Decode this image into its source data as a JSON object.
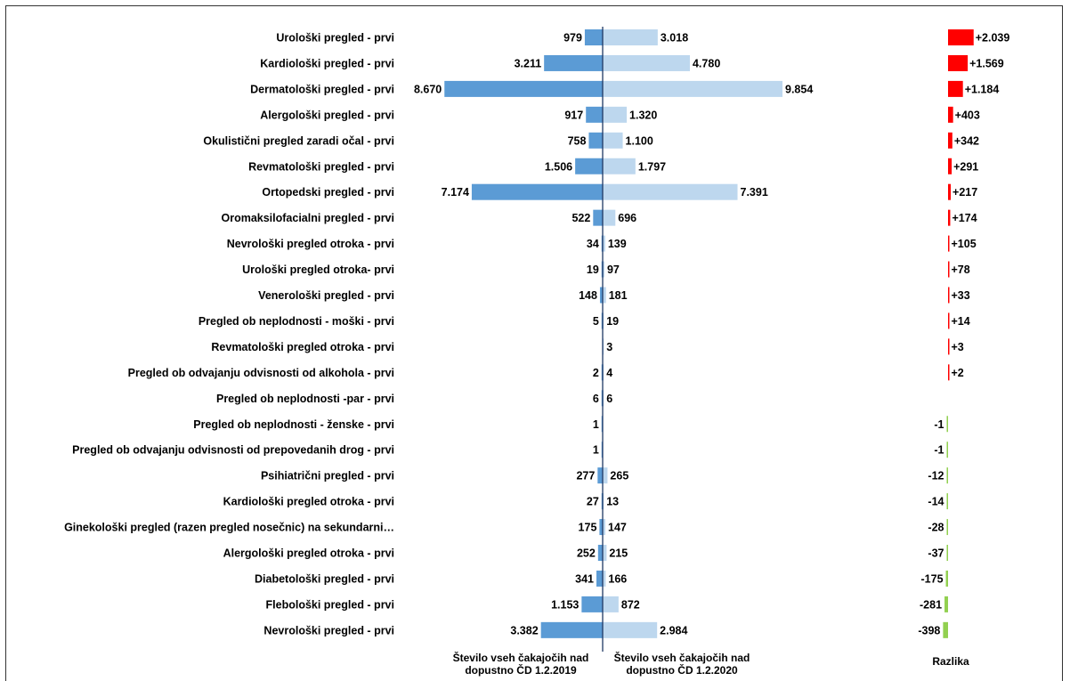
{
  "chart_data": {
    "type": "bar",
    "orientation": "horizontal-butterfly",
    "categories": [
      "Urološki pregled - prvi",
      "Kardiološki pregled - prvi",
      "Dermatološki pregled - prvi",
      "Alergološki pregled - prvi",
      "Okulistični pregled zaradi očal - prvi",
      "Revmatološki pregled - prvi",
      "Ortopedski pregled - prvi",
      "Oromaksilofacialni pregled - prvi",
      "Nevrološki pregled otroka - prvi",
      "Urološki pregled otroka- prvi",
      "Venerološki pregled - prvi",
      "Pregled ob neplodnosti - moški - prvi",
      "Revmatološki pregled otroka - prvi",
      "Pregled ob odvajanju odvisnosti od alkohola - prvi",
      "Pregled ob neplodnosti -par - prvi",
      "Pregled ob neplodnosti - ženske - prvi",
      "Pregled ob odvajanju odvisnosti od prepovedanih drog - prvi",
      "Psihiatrični pregled - prvi",
      "Kardiološki pregled otroka - prvi",
      "Ginekološki pregled (razen pregled nosečnic) na sekundarni…",
      "Alergološki pregled otroka - prvi",
      "Diabetološki pregled - prvi",
      "Flebološki pregled - prvi",
      "Nevrološki pregled - prvi"
    ],
    "series": [
      {
        "name": "Število vseh čakajočih nad dopustno ČD 1.2.2019",
        "values": [
          979,
          3211,
          8670,
          917,
          758,
          1506,
          7174,
          522,
          34,
          19,
          148,
          5,
          null,
          2,
          6,
          1,
          1,
          277,
          27,
          175,
          252,
          341,
          1153,
          3382
        ],
        "labels": [
          "979",
          "3.211",
          "8.670",
          "917",
          "758",
          "1.506",
          "7.174",
          "522",
          "34",
          "19",
          "148",
          "5",
          "",
          "2",
          "6",
          "1",
          "1",
          "277",
          "27",
          "175",
          "252",
          "341",
          "1.153",
          "3.382"
        ],
        "color": "#5b9bd5"
      },
      {
        "name": "Število vseh čakajočih nad dopustno ČD 1.2.2020",
        "values": [
          3018,
          4780,
          9854,
          1320,
          1100,
          1797,
          7391,
          696,
          139,
          97,
          181,
          19,
          3,
          4,
          6,
          null,
          null,
          265,
          13,
          147,
          215,
          166,
          872,
          2984
        ],
        "labels": [
          "3.018",
          "4.780",
          "9.854",
          "1.320",
          "1.100",
          "1.797",
          "7.391",
          "696",
          "139",
          "97",
          "181",
          "19",
          "3",
          "4",
          "6",
          "",
          "",
          "265",
          "13",
          "147",
          "215",
          "166",
          "872",
          "2.984"
        ],
        "color": "#bdd7ee"
      },
      {
        "name": "Razlika",
        "values": [
          2039,
          1569,
          1184,
          403,
          342,
          291,
          217,
          174,
          105,
          78,
          33,
          14,
          3,
          2,
          0,
          -1,
          -1,
          -12,
          -14,
          -28,
          -37,
          -175,
          -281,
          -398
        ],
        "labels": [
          "+2.039",
          "+1.569",
          "+1.184",
          "+403",
          "+342",
          "+291",
          "+217",
          "+174",
          "+105",
          "+78",
          "+33",
          "+14",
          "+3",
          "+2",
          "",
          "-1",
          "-1",
          "-12",
          "-14",
          "-28",
          "-37",
          "-175",
          "-281",
          "-398"
        ],
        "positive_color": "#ff0000",
        "negative_color": "#92d050"
      }
    ],
    "captions": {
      "left_line1": "Število vseh čakajočih nad",
      "left_line2": "dopustno ČD  1.2.2019",
      "right_line1": "Število vseh čakajočih nad",
      "right_line2": "dopustno ČD 1.2.2020",
      "diff": "Razlika"
    },
    "colors": {
      "axis": "#1f3864"
    }
  }
}
